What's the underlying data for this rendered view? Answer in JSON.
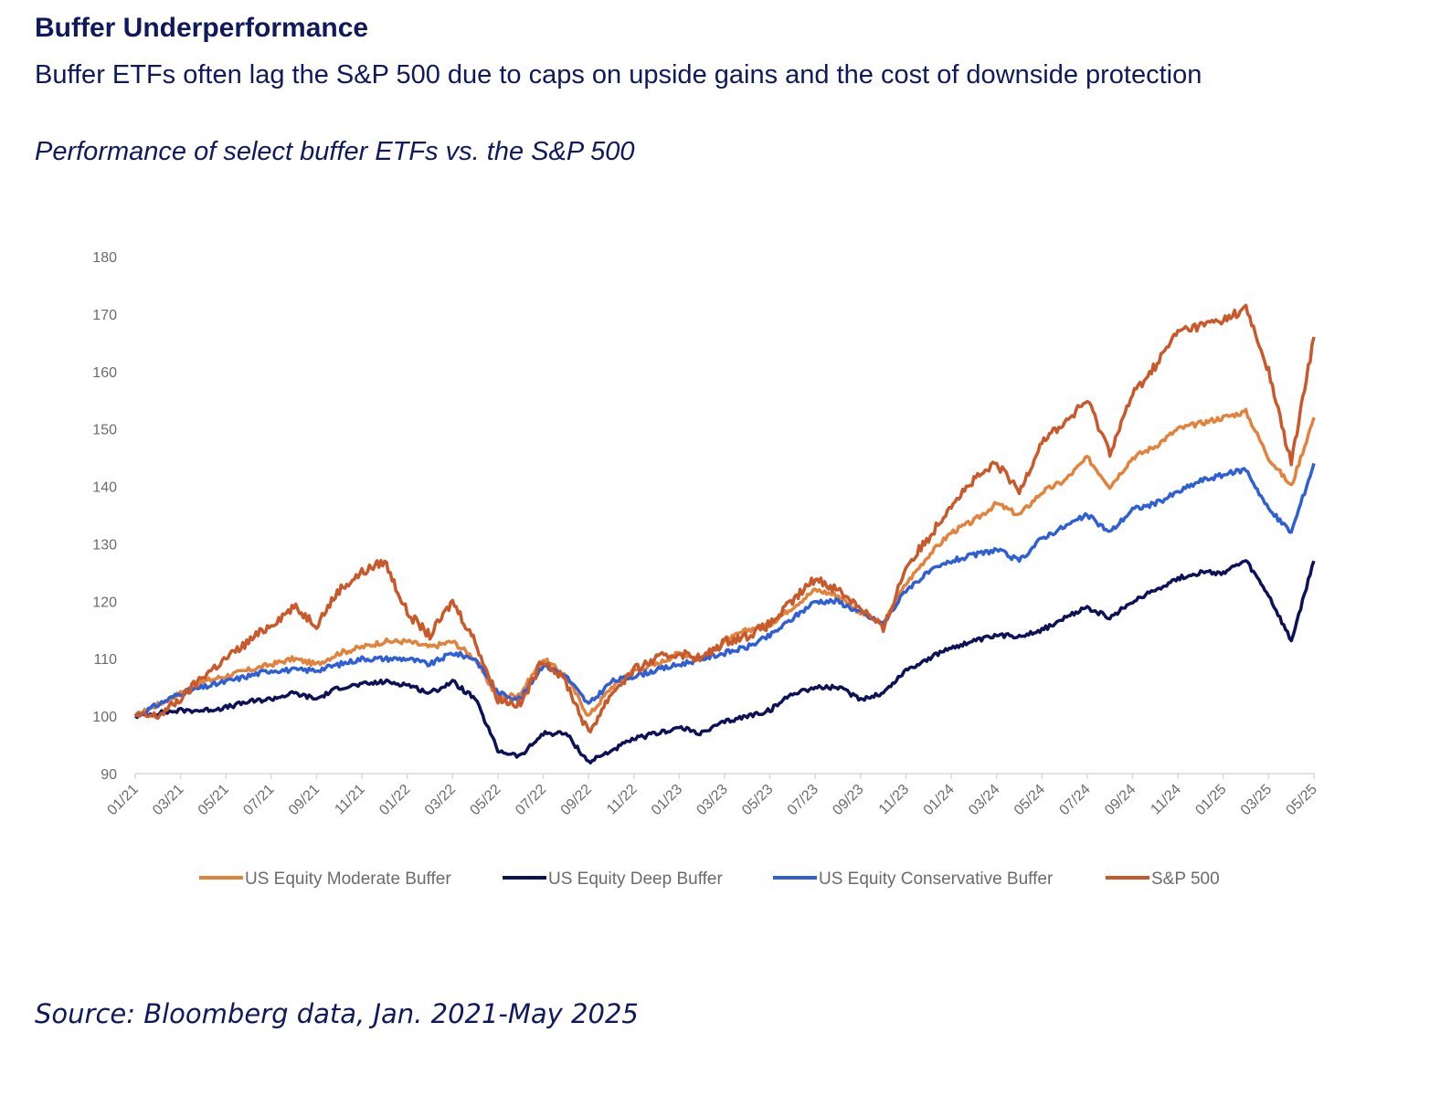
{
  "header": {
    "title": "Buffer Underperformance",
    "subtitle": "Buffer ETFs often lag the S&P 500 due to caps on upside gains and the cost of downside protection",
    "caption": "Performance of select buffer ETFs vs. the S&P 500"
  },
  "footer": {
    "source": "Source: Bloomberg data, Jan. 2021-May 2025"
  },
  "chart_data": {
    "type": "line",
    "title": "",
    "xlabel": "",
    "ylabel": "",
    "ylim": [
      90,
      180
    ],
    "yticks": [
      90,
      100,
      110,
      120,
      130,
      140,
      150,
      160,
      170,
      180
    ],
    "grid": false,
    "legend_position": "bottom",
    "x": [
      "01/21",
      "02/21",
      "03/21",
      "04/21",
      "05/21",
      "06/21",
      "07/21",
      "08/21",
      "09/21",
      "10/21",
      "11/21",
      "12/21",
      "01/22",
      "02/22",
      "03/22",
      "04/22",
      "05/22",
      "06/22",
      "07/22",
      "08/22",
      "09/22",
      "10/22",
      "11/22",
      "12/22",
      "01/23",
      "02/23",
      "03/23",
      "04/23",
      "05/23",
      "06/23",
      "07/23",
      "08/23",
      "09/23",
      "10/23",
      "11/23",
      "12/23",
      "01/24",
      "02/24",
      "03/24",
      "04/24",
      "05/24",
      "06/24",
      "07/24",
      "08/24",
      "09/24",
      "10/24",
      "11/24",
      "12/24",
      "01/25",
      "02/25",
      "03/25",
      "04/25",
      "05/25"
    ],
    "xtick_labels": [
      "01/21",
      "03/21",
      "05/21",
      "07/21",
      "09/21",
      "11/21",
      "01/22",
      "03/22",
      "05/22",
      "07/22",
      "09/22",
      "11/22",
      "01/23",
      "03/23",
      "05/23",
      "07/23",
      "09/23",
      "11/23",
      "01/24",
      "03/24",
      "05/24",
      "07/24",
      "09/24",
      "11/24",
      "01/25",
      "03/25",
      "05/25"
    ],
    "series": [
      {
        "name": "US Equity Moderate Buffer",
        "color": "#e3823a",
        "values": [
          100,
          102,
          104,
          106,
          107,
          108,
          109,
          110,
          109,
          111,
          112,
          113,
          113,
          112,
          113,
          110,
          103,
          104,
          110,
          107,
          100,
          105,
          108,
          109,
          111,
          110,
          113,
          115,
          116,
          119,
          122,
          121,
          118,
          116,
          123,
          128,
          132,
          134,
          137,
          135,
          139,
          141,
          145,
          140,
          145,
          147,
          150,
          151,
          152,
          153,
          145,
          140,
          152
        ]
      },
      {
        "name": "US Equity Deep Buffer",
        "color": "#0d1258",
        "values": [
          100,
          100.5,
          101,
          101,
          101.5,
          102.5,
          103,
          104,
          103,
          105,
          105.5,
          106,
          105.5,
          104,
          106,
          103,
          94,
          93,
          97,
          97,
          92,
          94,
          96,
          97,
          98,
          97,
          99,
          100,
          101,
          104,
          105,
          105,
          103,
          104,
          108,
          110,
          112,
          113,
          114,
          114,
          115,
          117,
          119,
          117,
          120,
          122,
          124,
          125,
          125,
          127,
          121,
          113,
          127
        ]
      },
      {
        "name": "US Equity Conservative Buffer",
        "color": "#2f5fd6",
        "values": [
          100,
          102,
          104,
          105,
          106,
          107,
          108,
          108,
          108,
          109,
          110,
          110,
          110,
          109,
          111,
          110,
          104,
          103,
          109,
          107,
          102,
          106,
          107,
          108,
          109,
          110,
          111,
          112,
          114,
          117,
          120,
          120,
          118,
          116,
          122,
          125,
          127,
          128,
          129,
          127,
          131,
          133,
          135,
          132,
          136,
          137,
          139,
          141,
          142,
          143,
          136,
          132,
          144
        ]
      },
      {
        "name": "S&P 500",
        "color": "#c9592a",
        "values": [
          100,
          100,
          103,
          107,
          110,
          113,
          116,
          119,
          116,
          122,
          125,
          127,
          118,
          114,
          120,
          113,
          103,
          102,
          110,
          106,
          97,
          104,
          108,
          110,
          111,
          110,
          113,
          114,
          116,
          120,
          124,
          122,
          119,
          115,
          126,
          131,
          137,
          141,
          144,
          139,
          148,
          151,
          155,
          146,
          156,
          161,
          167,
          168,
          169,
          171,
          160,
          144,
          166
        ]
      }
    ]
  }
}
